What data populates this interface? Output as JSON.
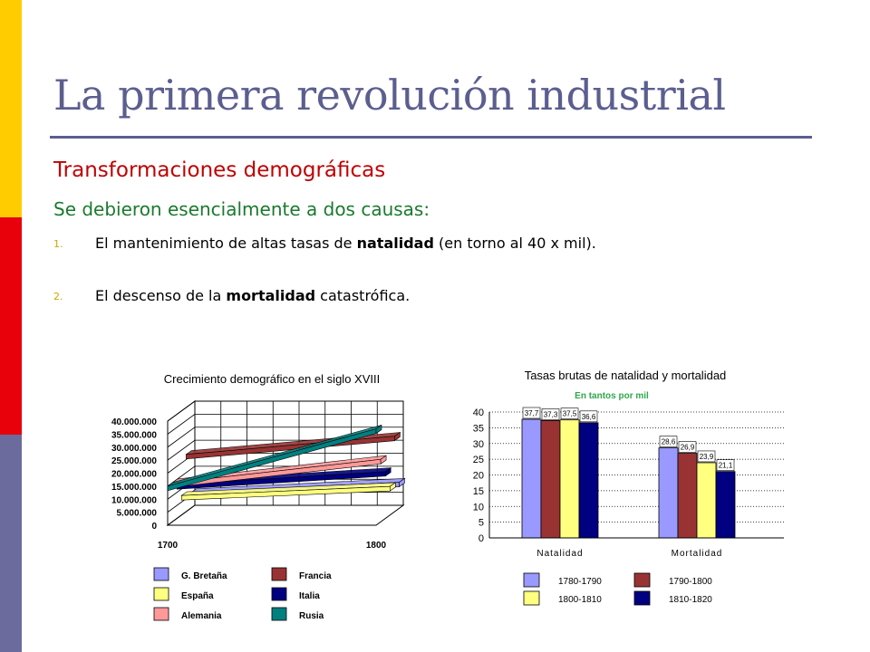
{
  "slide": {
    "title": "La primera revolución industrial",
    "subtitle": "Transformaciones demográficas",
    "intro": "Se debieron esencialmente a dos causas:",
    "items": [
      {
        "num": "1.",
        "pre": "El mantenimiento de altas tasas de ",
        "bold": "natalidad",
        "post": " (en torno al 40 x mil)."
      },
      {
        "num": "2.",
        "pre": "El descenso de la ",
        "bold": "mortalidad",
        "post": " catastrófica."
      }
    ],
    "colors": {
      "title": "#5b5e8f",
      "subtitle": "#c00000",
      "intro": "#1a7a2e",
      "band_top": "#ffcc00",
      "band_mid": "#e8000b",
      "band_bottom": "#6b6b9e"
    }
  },
  "chart_data": [
    {
      "type": "line",
      "title": "Crecimiento demográfico en el siglo XVIII",
      "x": [
        "1700",
        "1800"
      ],
      "y_ticks": [
        "0",
        "5.000.000",
        "10.000.000",
        "15.000.000",
        "20.000.000",
        "25.000.000",
        "30.000.000",
        "35.000.000",
        "40.000.000"
      ],
      "ylim": [
        0,
        40000000
      ],
      "style": "3d-ribbons",
      "legend_position": "bottom",
      "series": [
        {
          "name": "G. Bretaña",
          "color": "#9999ff",
          "values": [
            6000000,
            10000000
          ]
        },
        {
          "name": "Francia",
          "color": "#993333",
          "values": [
            22000000,
            29000000
          ]
        },
        {
          "name": "España",
          "color": "#ffff80",
          "values": [
            7500000,
            11000000
          ]
        },
        {
          "name": "Italia",
          "color": "#000080",
          "values": [
            13000000,
            18000000
          ]
        },
        {
          "name": "Alemania",
          "color": "#ff9999",
          "values": [
            15000000,
            24000000
          ]
        },
        {
          "name": "Rusia",
          "color": "#008080",
          "values": [
            15000000,
            37000000
          ]
        }
      ]
    },
    {
      "type": "bar",
      "title": "Tasas brutas de natalidad y mortalidad",
      "subtitle": "En tantos por mil",
      "categories": [
        "Natalidad",
        "Mortalidad"
      ],
      "ylim": [
        0,
        40
      ],
      "y_ticks": [
        "0",
        "5",
        "10",
        "15",
        "20",
        "25",
        "30",
        "35",
        "40"
      ],
      "legend_position": "bottom",
      "series": [
        {
          "name": "1780-1790",
          "color": "#9999ff",
          "values": [
            37.7,
            28.6
          ],
          "labels": [
            "37,7",
            "28,6"
          ]
        },
        {
          "name": "1790-1800",
          "color": "#993333",
          "values": [
            37.3,
            26.9
          ],
          "labels": [
            "37,3",
            "26,9"
          ]
        },
        {
          "name": "1800-1810",
          "color": "#ffff80",
          "values": [
            37.5,
            23.9
          ],
          "labels": [
            "37,5",
            "23,9"
          ]
        },
        {
          "name": "1810-1820",
          "color": "#000080",
          "values": [
            36.6,
            21.1
          ],
          "labels": [
            "36,6",
            "21,1"
          ]
        }
      ]
    }
  ]
}
